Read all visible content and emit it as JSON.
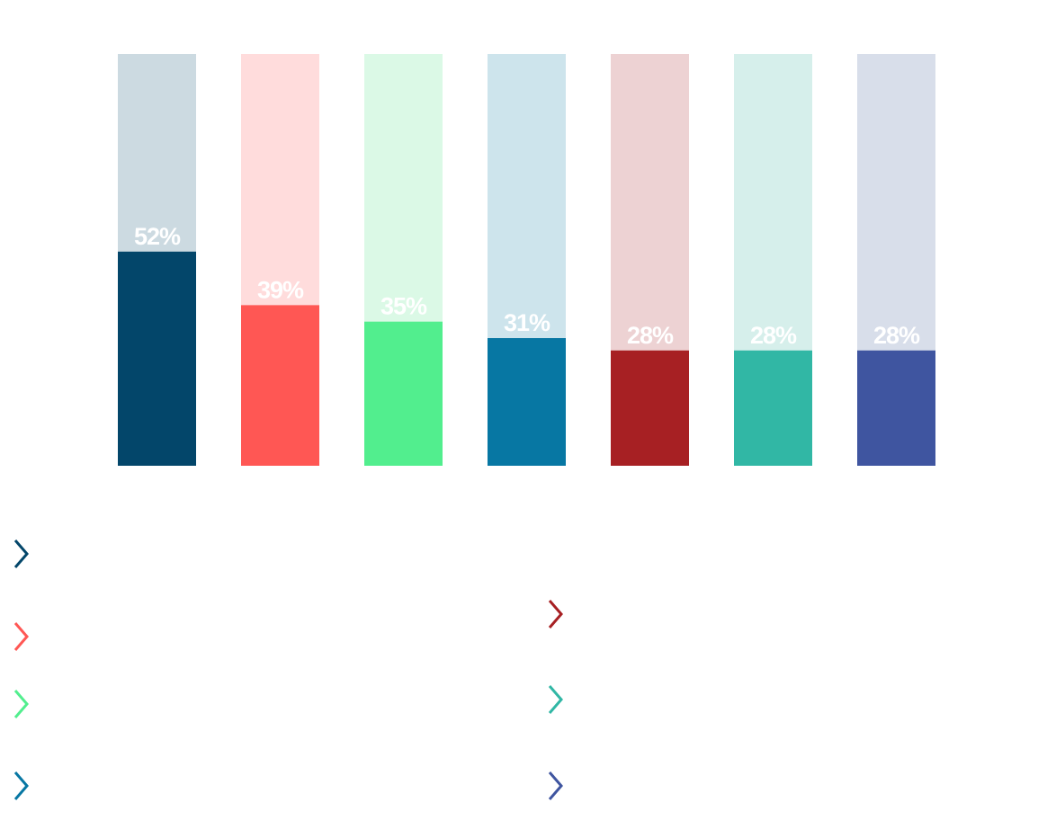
{
  "chart_data": {
    "type": "bar",
    "subtype": "100% progress columns",
    "categories": [
      "",
      "",
      "",
      "",
      "",
      "",
      ""
    ],
    "values": [
      52,
      39,
      35,
      31,
      28,
      28,
      28
    ],
    "labels": [
      "52%",
      "39%",
      "35%",
      "31%",
      "28%",
      "28%",
      "28%"
    ],
    "ylim": [
      0,
      100
    ],
    "unit": "%",
    "grid": false,
    "title": "",
    "xlabel": "",
    "ylabel": "",
    "colors": [
      "#03466A",
      "#FF5754",
      "#52EE8E",
      "#0777A3",
      "#A72023",
      "#31B7A5",
      "#3F55A0"
    ],
    "track_colors": [
      "#CCDAE1",
      "#FFDCDC",
      "#DBF9E6",
      "#CDE4EC",
      "#EDD2D3",
      "#D6EFEB",
      "#D8DEEA"
    ]
  },
  "legend": {
    "items": [
      {
        "icon": "chevron-right-icon",
        "color": "#03466A",
        "text": ""
      },
      {
        "icon": "chevron-right-icon",
        "color": "#FF5754",
        "text": ""
      },
      {
        "icon": "chevron-right-icon",
        "color": "#52EE8E",
        "text": ""
      },
      {
        "icon": "chevron-right-icon",
        "color": "#0777A3",
        "text": ""
      },
      {
        "icon": "chevron-right-icon",
        "color": "#A72023",
        "text": ""
      },
      {
        "icon": "chevron-right-icon",
        "color": "#31B7A5",
        "text": ""
      },
      {
        "icon": "chevron-right-icon",
        "color": "#3F55A0",
        "text": ""
      }
    ]
  }
}
